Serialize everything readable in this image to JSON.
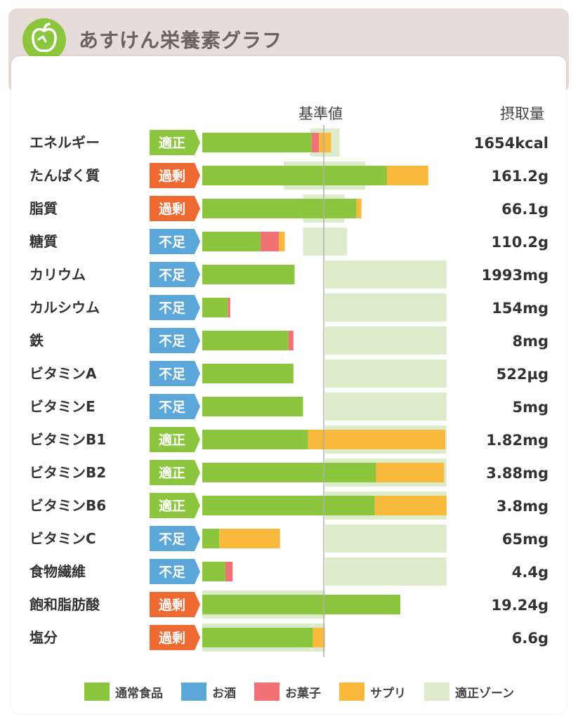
{
  "header": {
    "title": "あすけん栄養素グラフ",
    "logo_icon": "apple-scale-icon"
  },
  "columns": {
    "reference": "基準値",
    "intake": "摂取量"
  },
  "colors": {
    "food": "#8cc63e",
    "alcohol": "#5ba7da",
    "sweets": "#f07276",
    "supplement": "#f9b93d",
    "zone": "#dcebc9",
    "status_appropriate": "#8cc63e",
    "status_excess": "#ef6a32",
    "status_deficient": "#5ba7da"
  },
  "chart_data": {
    "type": "bar",
    "orientation": "horizontal",
    "stacked": true,
    "reference_line": 100,
    "x_unit": "% of reference",
    "categories": [
      "エネルギー",
      "たんぱく質",
      "脂質",
      "糖質",
      "カリウム",
      "カルシウム",
      "鉄",
      "ビタミンA",
      "ビタミンE",
      "ビタミンB1",
      "ビタミンB2",
      "ビタミンB6",
      "ビタミンC",
      "食物繊維",
      "飽和脂肪酸",
      "塩分"
    ],
    "status": [
      "適正",
      "過剰",
      "過剰",
      "不足",
      "不足",
      "不足",
      "不足",
      "不足",
      "不足",
      "適正",
      "適正",
      "適正",
      "不足",
      "不足",
      "過剰",
      "過剰"
    ],
    "status_type": [
      "appropriate",
      "excess",
      "excess",
      "deficient",
      "deficient",
      "deficient",
      "deficient",
      "deficient",
      "deficient",
      "appropriate",
      "appropriate",
      "appropriate",
      "deficient",
      "deficient",
      "excess",
      "excess"
    ],
    "amounts": [
      "1654kcal",
      "161.2g",
      "66.1g",
      "110.2g",
      "1993mg",
      "154mg",
      "8mg",
      "522µg",
      "5mg",
      "1.82mg",
      "3.88mg",
      "3.8mg",
      "65mg",
      "4.4g",
      "19.24g",
      "6.6g"
    ],
    "series": [
      {
        "name": "通常食品",
        "key": "food",
        "values": [
          90,
          152,
          127,
          48,
          76,
          21,
          71,
          75,
          83,
          87,
          143,
          142,
          14,
          19,
          163,
          91
        ]
      },
      {
        "name": "お酒",
        "key": "alcohol",
        "values": [
          0,
          0,
          0,
          0,
          0,
          0,
          0,
          0,
          0,
          0,
          0,
          0,
          0,
          0,
          0,
          0
        ]
      },
      {
        "name": "お菓子",
        "key": "sweets",
        "values": [
          6,
          0,
          0,
          15,
          0,
          2,
          4,
          0,
          0,
          0,
          0,
          0,
          0,
          6,
          0,
          0
        ]
      },
      {
        "name": "サプリ",
        "key": "supplement",
        "values": [
          10,
          34,
          4,
          5,
          0,
          0,
          0,
          0,
          0,
          113,
          56,
          59,
          50,
          0,
          0,
          10
        ]
      }
    ],
    "zones": [
      [
        89,
        113
      ],
      [
        67,
        134
      ],
      [
        83,
        117
      ],
      [
        83,
        119
      ],
      [
        101,
        201
      ],
      [
        101,
        201
      ],
      [
        101,
        201
      ],
      [
        101,
        201
      ],
      [
        101,
        201
      ],
      [
        101,
        201
      ],
      [
        101,
        201
      ],
      [
        101,
        201
      ],
      [
        101,
        201
      ],
      [
        101,
        201
      ],
      [
        0,
        101
      ],
      [
        0,
        101
      ]
    ],
    "xlim": [
      0,
      205
    ],
    "legend": {
      "placement": "bottom",
      "entries": [
        {
          "label": "通常食品",
          "color": "#8cc63e"
        },
        {
          "label": "お酒",
          "color": "#5ba7da"
        },
        {
          "label": "お菓子",
          "color": "#f07276"
        },
        {
          "label": "サプリ",
          "color": "#f9b93d"
        },
        {
          "label": "適正ゾーン",
          "color": "#dcebc9"
        }
      ]
    }
  }
}
